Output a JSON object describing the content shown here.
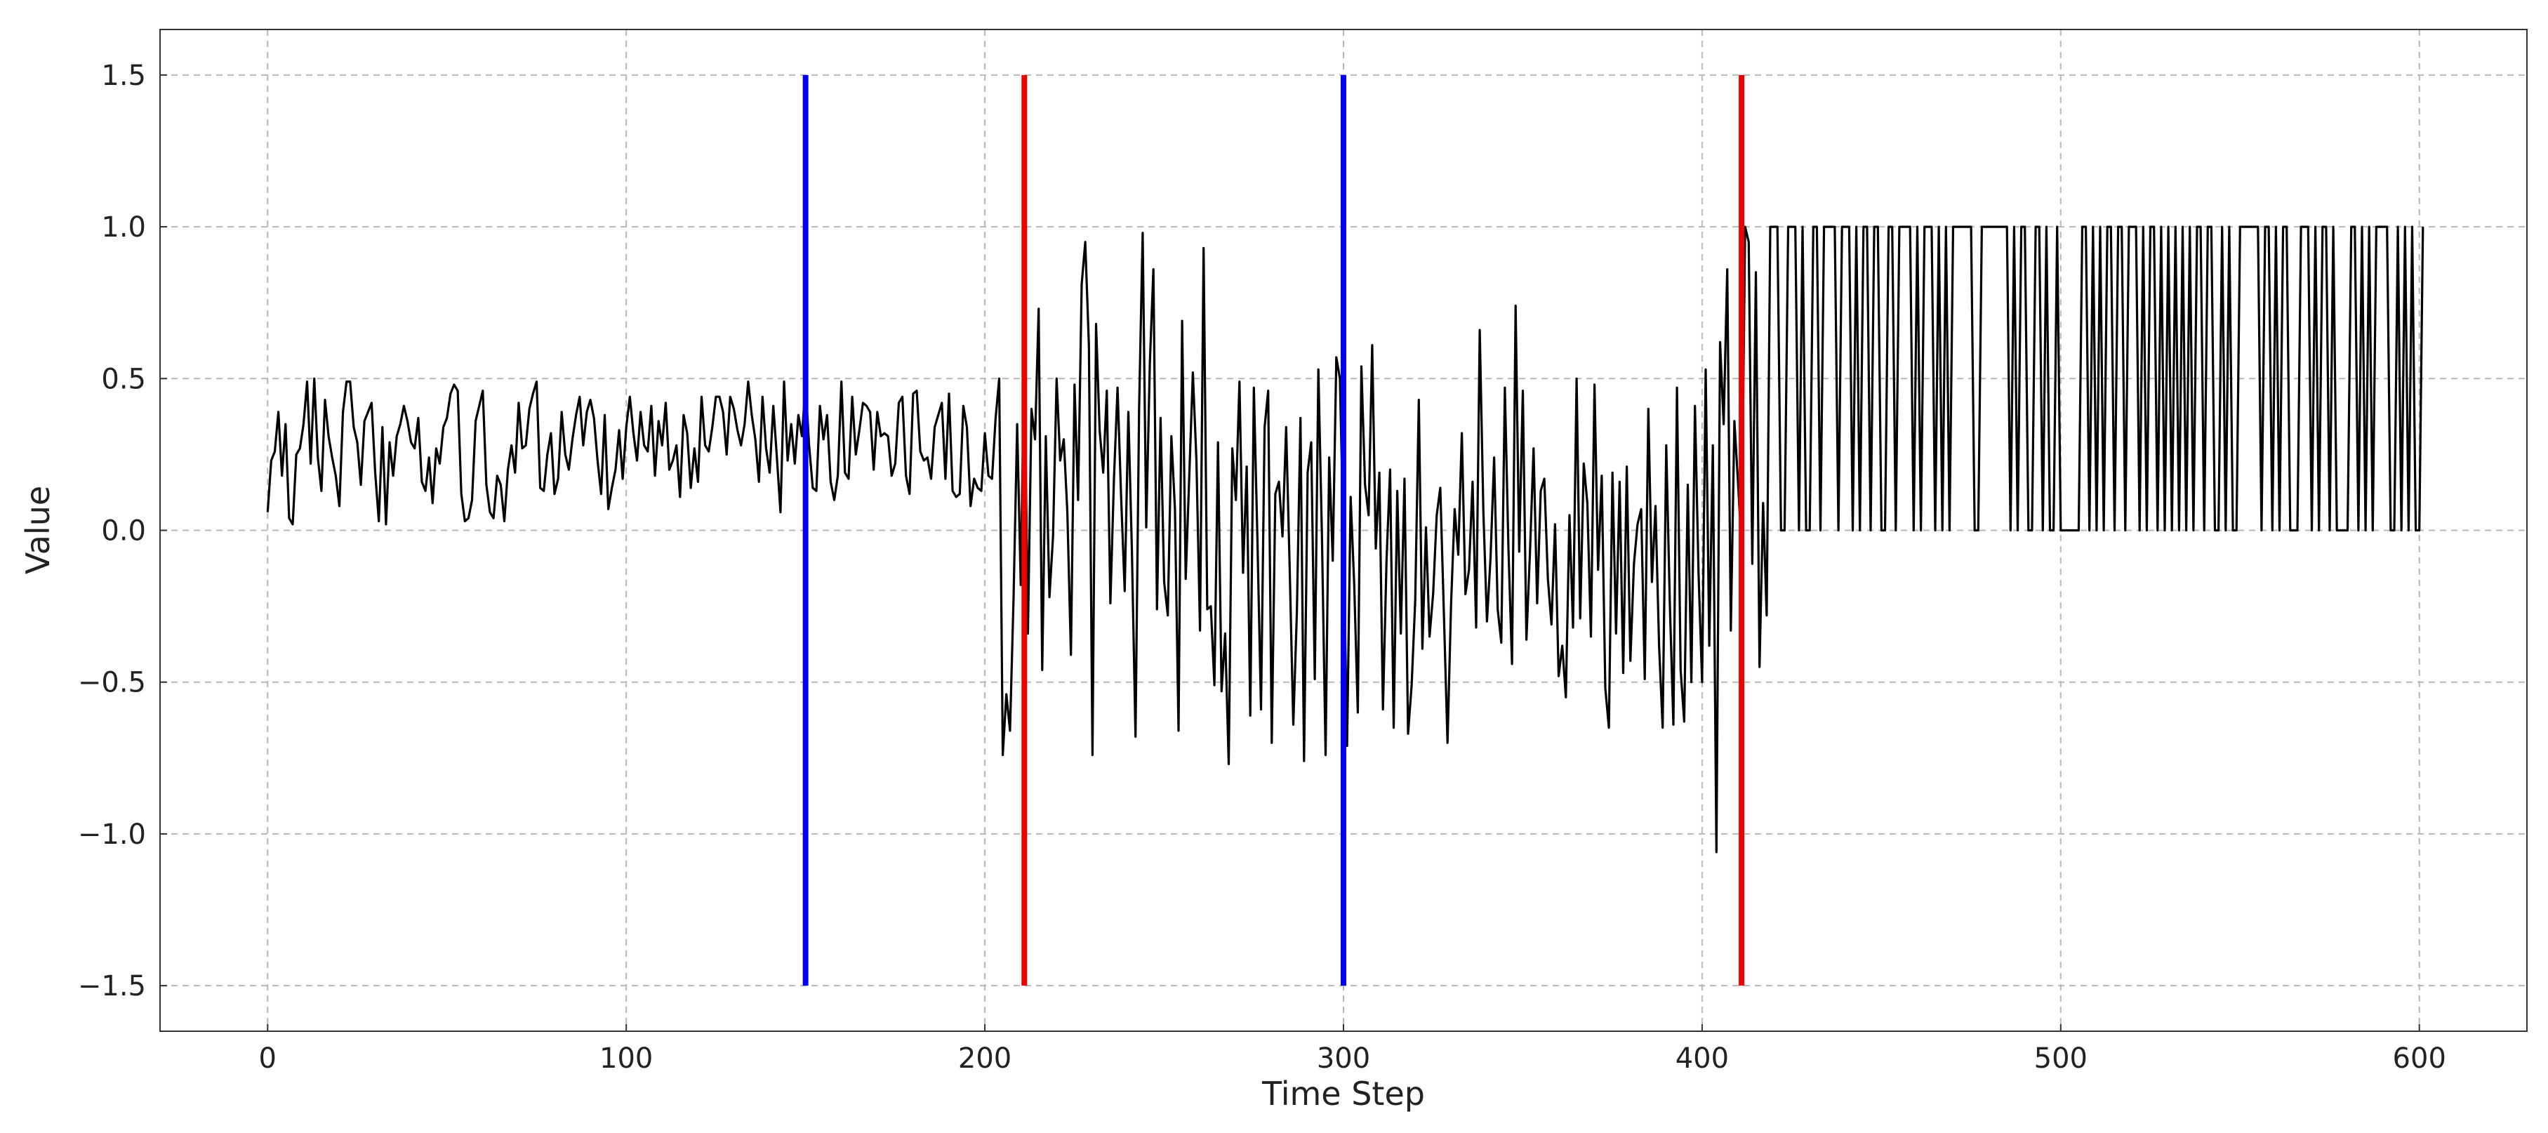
{
  "chart_data": {
    "type": "line",
    "title": "",
    "xlabel": "Time Step",
    "ylabel": "Value",
    "xlim": [
      -30,
      630
    ],
    "ylim": [
      -1.65,
      1.65
    ],
    "grid": true,
    "x_ticks": [
      0,
      100,
      200,
      300,
      400,
      500,
      600
    ],
    "x_tick_labels": [
      "0",
      "100",
      "200",
      "300",
      "400",
      "500",
      "600"
    ],
    "y_ticks": [
      -1.5,
      -1.0,
      -0.5,
      0.0,
      0.5,
      1.0,
      1.5
    ],
    "y_tick_labels": [
      "−1.5",
      "−1.0",
      "−0.5",
      "0.0",
      "0.5",
      "1.0",
      "1.5"
    ],
    "series": [
      {
        "color": "#000000",
        "x_start": 0,
        "x_step": 1,
        "values": [
          0.06,
          0.23,
          0.26,
          0.39,
          0.18,
          0.35,
          0.04,
          0.02,
          0.25,
          0.27,
          0.35,
          0.49,
          0.22,
          0.5,
          0.24,
          0.13,
          0.43,
          0.31,
          0.24,
          0.18,
          0.08,
          0.39,
          0.49,
          0.49,
          0.34,
          0.29,
          0.15,
          0.36,
          0.39,
          0.42,
          0.19,
          0.03,
          0.34,
          0.02,
          0.29,
          0.18,
          0.31,
          0.35,
          0.41,
          0.36,
          0.29,
          0.27,
          0.37,
          0.16,
          0.13,
          0.24,
          0.09,
          0.27,
          0.22,
          0.34,
          0.37,
          0.45,
          0.48,
          0.46,
          0.12,
          0.03,
          0.04,
          0.1,
          0.36,
          0.41,
          0.46,
          0.15,
          0.06,
          0.04,
          0.18,
          0.15,
          0.03,
          0.2,
          0.28,
          0.19,
          0.42,
          0.27,
          0.28,
          0.4,
          0.45,
          0.49,
          0.14,
          0.13,
          0.25,
          0.32,
          0.12,
          0.17,
          0.39,
          0.25,
          0.2,
          0.3,
          0.38,
          0.44,
          0.28,
          0.39,
          0.43,
          0.37,
          0.23,
          0.12,
          0.38,
          0.07,
          0.14,
          0.2,
          0.33,
          0.17,
          0.34,
          0.44,
          0.32,
          0.23,
          0.39,
          0.28,
          0.26,
          0.41,
          0.18,
          0.36,
          0.28,
          0.42,
          0.2,
          0.23,
          0.28,
          0.11,
          0.38,
          0.32,
          0.14,
          0.27,
          0.16,
          0.44,
          0.28,
          0.26,
          0.34,
          0.44,
          0.44,
          0.39,
          0.25,
          0.44,
          0.4,
          0.33,
          0.28,
          0.35,
          0.49,
          0.38,
          0.3,
          0.16,
          0.44,
          0.27,
          0.19,
          0.41,
          0.24,
          0.06,
          0.49,
          0.23,
          0.35,
          0.22,
          0.38,
          0.31,
          0.48,
          0.28,
          0.14,
          0.13,
          0.41,
          0.3,
          0.38,
          0.16,
          0.1,
          0.18,
          0.49,
          0.19,
          0.17,
          0.44,
          0.25,
          0.33,
          0.42,
          0.41,
          0.39,
          0.2,
          0.39,
          0.31,
          0.32,
          0.31,
          0.18,
          0.22,
          0.42,
          0.44,
          0.18,
          0.12,
          0.45,
          0.46,
          0.26,
          0.23,
          0.24,
          0.17,
          0.34,
          0.38,
          0.42,
          0.17,
          0.45,
          0.13,
          0.11,
          0.12,
          0.41,
          0.34,
          0.08,
          0.17,
          0.14,
          0.13,
          0.32,
          0.18,
          0.17,
          0.37,
          0.5,
          -0.74,
          -0.54,
          -0.66,
          -0.22,
          0.35,
          -0.18,
          0.6,
          -0.34,
          0.4,
          0.3,
          0.73,
          -0.46,
          0.31,
          -0.22,
          -0.02,
          0.5,
          0.23,
          0.3,
          0.06,
          -0.41,
          0.48,
          0.1,
          0.81,
          0.95,
          0.61,
          -0.74,
          0.68,
          0.33,
          0.19,
          0.46,
          -0.24,
          0.17,
          0.47,
          0.11,
          -0.2,
          0.39,
          -0.07,
          -0.68,
          0.4,
          0.98,
          0.01,
          0.55,
          0.86,
          -0.26,
          0.37,
          -0.17,
          -0.28,
          0.31,
          0.07,
          -0.66,
          0.69,
          -0.16,
          0.18,
          0.52,
          0.23,
          -0.33,
          0.93,
          -0.26,
          -0.25,
          -0.51,
          0.29,
          -0.53,
          -0.34,
          -0.77,
          0.27,
          0.1,
          0.49,
          -0.14,
          0.21,
          -0.61,
          0.47,
          -0.03,
          -0.59,
          0.34,
          0.46,
          -0.7,
          0.12,
          0.16,
          -0.02,
          0.34,
          -0.13,
          -0.64,
          -0.27,
          0.37,
          -0.76,
          0.19,
          0.29,
          -0.49,
          0.53,
          -0.02,
          -0.74,
          0.24,
          -0.1,
          0.57,
          0.5,
          -0.03,
          -0.71,
          0.11,
          -0.18,
          -0.6,
          0.54,
          0.15,
          0.05,
          0.61,
          -0.06,
          0.19,
          -0.59,
          -0.1,
          0.2,
          -0.65,
          0.13,
          -0.34,
          0.17,
          -0.67,
          -0.51,
          -0.23,
          0.43,
          -0.39,
          0.01,
          -0.35,
          -0.21,
          0.05,
          0.14,
          -0.28,
          -0.7,
          -0.24,
          0.07,
          -0.08,
          0.32,
          -0.21,
          -0.13,
          0.16,
          -0.32,
          0.66,
          0.06,
          -0.3,
          -0.09,
          0.24,
          -0.26,
          -0.37,
          0.47,
          -0.06,
          -0.44,
          0.74,
          -0.07,
          0.46,
          -0.36,
          -0.07,
          0.27,
          -0.24,
          0.13,
          0.17,
          -0.16,
          -0.31,
          0.02,
          -0.48,
          -0.38,
          -0.55,
          0.05,
          -0.32,
          0.5,
          -0.29,
          0.22,
          0.09,
          -0.35,
          0.48,
          -0.13,
          0.18,
          -0.52,
          -0.65,
          0.19,
          -0.34,
          0.16,
          -0.47,
          0.21,
          -0.43,
          -0.11,
          0.02,
          0.07,
          -0.49,
          0.4,
          -0.17,
          0.08,
          -0.38,
          -0.65,
          0.28,
          -0.24,
          -0.64,
          0.47,
          -0.46,
          -0.63,
          0.15,
          -0.5,
          0.41,
          -0.14,
          -0.5,
          0.53,
          -0.38,
          0.28,
          -1.06,
          0.62,
          0.35,
          0.86,
          -0.33,
          0.36,
          0.16,
          -0.05,
          1.0,
          0.95,
          -0.11,
          0.85,
          -0.45,
          0.09,
          -0.28,
          1.0,
          1.0,
          1.0,
          0.0,
          0.0,
          1.0,
          1.0,
          1.0,
          0.0,
          1.0,
          0.0,
          0.0,
          1.0,
          1.0,
          0.0,
          1.0,
          1.0,
          1.0,
          1.0,
          0.0,
          1.0,
          1.0,
          1.0,
          0.0,
          1.0,
          0.0,
          1.0,
          1.0,
          0.0,
          1.0,
          1.0,
          0.0,
          0.0,
          1.0,
          1.0,
          0.0,
          1.0,
          1.0,
          1.0,
          1.0,
          0.0,
          1.0,
          0.0,
          1.0,
          1.0,
          1.0,
          0.0,
          1.0,
          0.0,
          1.0,
          0.0,
          1.0,
          1.0,
          1.0,
          1.0,
          1.0,
          1.0,
          0.0,
          0.0,
          1.0,
          1.0,
          1.0,
          1.0,
          1.0,
          1.0,
          1.0,
          1.0,
          0.0,
          1.0,
          0.0,
          1.0,
          1.0,
          0.0,
          0.0,
          1.0,
          1.0,
          0.0,
          1.0,
          0.0,
          0.0,
          1.0,
          0.0,
          0.0,
          0.0,
          0.0,
          0.0,
          0.0,
          1.0,
          1.0,
          0.0,
          1.0,
          0.0,
          1.0,
          0.0,
          1.0,
          1.0,
          0.0,
          1.0,
          1.0,
          0.0,
          1.0,
          1.0,
          1.0,
          0.0,
          1.0,
          0.0,
          1.0,
          1.0,
          0.0,
          1.0,
          0.0,
          1.0,
          0.0,
          1.0,
          0.0,
          1.0,
          0.0,
          1.0,
          0.0,
          1.0,
          1.0,
          0.0,
          1.0,
          1.0,
          0.0,
          0.0,
          1.0,
          0.0,
          1.0,
          0.0,
          0.0,
          1.0,
          1.0,
          1.0,
          1.0,
          1.0,
          1.0,
          0.0,
          1.0,
          1.0,
          0.0,
          1.0,
          0.0,
          1.0,
          1.0,
          0.0,
          0.0,
          0.0,
          1.0,
          1.0,
          1.0,
          0.0,
          1.0,
          0.0,
          1.0,
          1.0,
          0.0,
          1.0,
          0.0,
          0.0,
          0.0,
          0.0,
          1.0,
          1.0,
          0.0,
          1.0,
          0.0,
          1.0,
          0.0,
          1.0,
          1.0,
          1.0,
          1.0,
          0.0,
          0.0,
          1.0,
          0.0,
          1.0,
          0.0,
          1.0,
          0.0,
          0.0,
          1.0
        ]
      }
    ],
    "vertical_lines": [
      {
        "x": 150,
        "y_range": [
          -1.5,
          1.5
        ],
        "color": "#0000ee"
      },
      {
        "x": 211,
        "y_range": [
          -1.5,
          1.5
        ],
        "color": "#ee0000"
      },
      {
        "x": 300,
        "y_range": [
          -1.5,
          1.5
        ],
        "color": "#0000ee"
      },
      {
        "x": 411,
        "y_range": [
          -1.5,
          1.5
        ],
        "color": "#ee0000"
      }
    ]
  }
}
